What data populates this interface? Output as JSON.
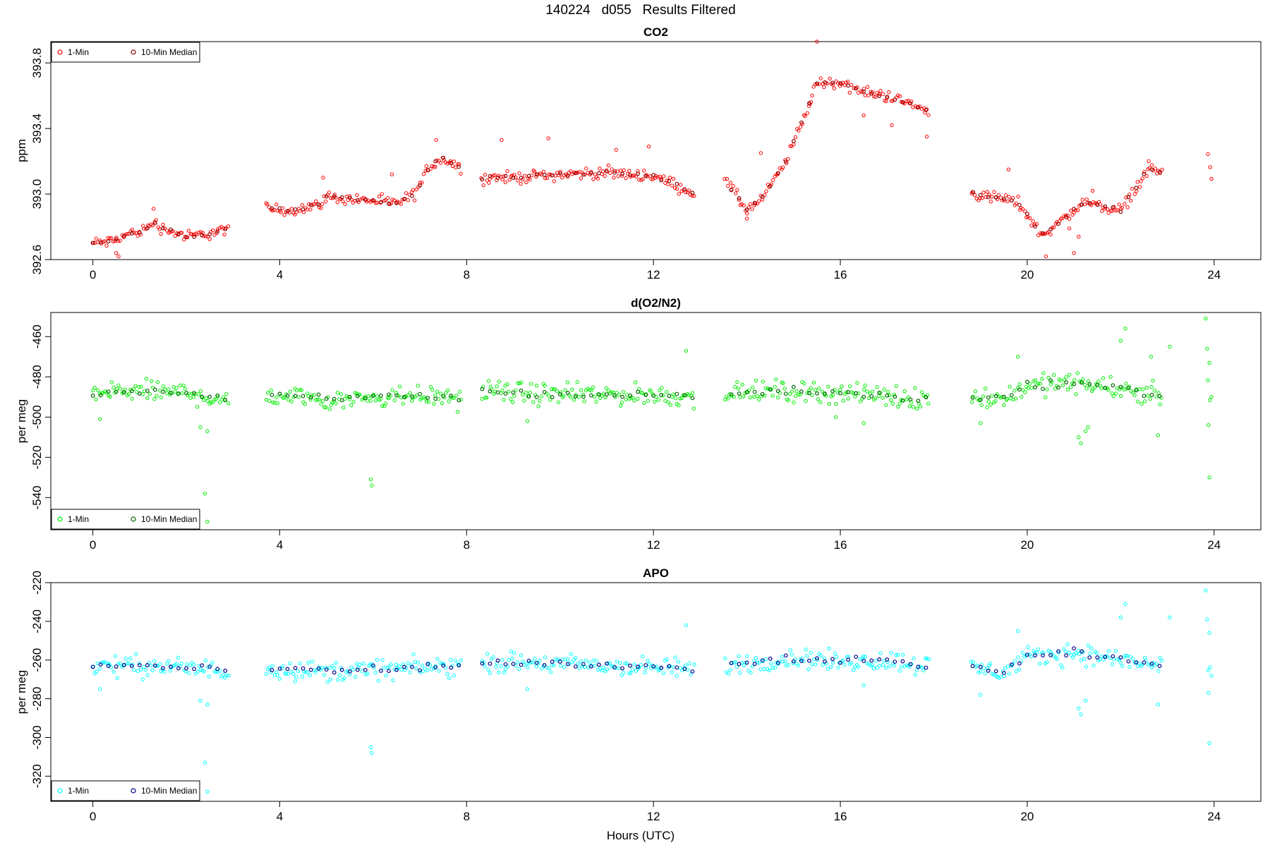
{
  "figure": {
    "title": "140224   d055   Results Filtered",
    "xlabel": "Hours (UTC)"
  },
  "chart_data": [
    {
      "type": "scatter",
      "title": "CO2",
      "ylabel": "ppm",
      "xlim": [
        -0.9,
        25
      ],
      "ylim": [
        392.6,
        393.93
      ],
      "xticks": [
        0,
        4,
        8,
        12,
        16,
        20,
        24
      ],
      "yticks": [
        392.6,
        393.0,
        393.4,
        393.8
      ],
      "ytick_labels": [
        "392.6",
        "393.0",
        "393.4",
        "393.8"
      ],
      "legend_position": "top-left",
      "series": [
        {
          "name": "1-Min",
          "color": "#ff0000",
          "marker": "open-circle"
        },
        {
          "name": "10-Min Median",
          "color": "#8b0000",
          "marker": "open-circle"
        }
      ],
      "x_gaps": [
        [
          2.9,
          3.7
        ],
        [
          7.9,
          8.3
        ],
        [
          12.9,
          13.5
        ],
        [
          17.9,
          18.8
        ],
        [
          22.9,
          23.85
        ]
      ],
      "trend": [
        [
          0.0,
          392.7
        ],
        [
          0.4,
          392.71
        ],
        [
          0.8,
          392.76
        ],
        [
          1.1,
          392.78
        ],
        [
          1.3,
          392.83
        ],
        [
          1.5,
          392.79
        ],
        [
          2.0,
          392.74
        ],
        [
          2.5,
          392.76
        ],
        [
          2.9,
          392.79
        ],
        [
          3.7,
          392.91
        ],
        [
          4.2,
          392.9
        ],
        [
          4.8,
          392.93
        ],
        [
          5.0,
          392.98
        ],
        [
          6.0,
          392.96
        ],
        [
          6.5,
          392.94
        ],
        [
          6.9,
          393.0
        ],
        [
          7.2,
          393.17
        ],
        [
          7.5,
          393.22
        ],
        [
          7.9,
          393.15
        ],
        [
          8.3,
          393.1
        ],
        [
          9.0,
          393.1
        ],
        [
          10.0,
          393.12
        ],
        [
          11.0,
          393.13
        ],
        [
          12.0,
          393.11
        ],
        [
          12.5,
          393.05
        ],
        [
          12.9,
          393.0
        ],
        [
          13.5,
          393.1
        ],
        [
          14.0,
          392.9
        ],
        [
          14.3,
          392.96
        ],
        [
          14.8,
          393.18
        ],
        [
          15.2,
          393.45
        ],
        [
          15.5,
          393.68
        ],
        [
          16.0,
          393.68
        ],
        [
          16.5,
          393.62
        ],
        [
          17.0,
          393.6
        ],
        [
          17.5,
          393.55
        ],
        [
          17.9,
          393.5
        ],
        [
          18.8,
          393.0
        ],
        [
          19.3,
          392.98
        ],
        [
          19.8,
          392.95
        ],
        [
          20.3,
          392.75
        ],
        [
          20.8,
          392.85
        ],
        [
          21.2,
          392.95
        ],
        [
          22.0,
          392.9
        ],
        [
          22.6,
          393.15
        ],
        [
          22.9,
          393.14
        ],
        [
          23.85,
          393.25
        ],
        [
          23.95,
          393.1
        ]
      ],
      "noise": 0.03,
      "outliers": [
        [
          0.5,
          392.64
        ],
        [
          0.55,
          392.62
        ],
        [
          1.3,
          392.91
        ],
        [
          4.93,
          393.1
        ],
        [
          6.4,
          393.12
        ],
        [
          7.35,
          393.33
        ],
        [
          8.75,
          393.33
        ],
        [
          9.75,
          393.34
        ],
        [
          11.2,
          393.27
        ],
        [
          11.9,
          393.29
        ],
        [
          15.5,
          393.93
        ],
        [
          15.35,
          393.55
        ],
        [
          14.0,
          392.85
        ],
        [
          14.3,
          393.25
        ],
        [
          16.5,
          393.48
        ],
        [
          17.1,
          393.42
        ],
        [
          17.85,
          393.35
        ],
        [
          19.6,
          393.15
        ],
        [
          20.4,
          392.62
        ],
        [
          21.0,
          392.64
        ],
        [
          21.1,
          392.74
        ],
        [
          21.4,
          393.02
        ],
        [
          20.9,
          392.79
        ],
        [
          22.6,
          393.2
        ]
      ]
    },
    {
      "type": "scatter",
      "title": "d(O2/N2)",
      "ylabel": "per meg",
      "xlim": [
        -0.9,
        25
      ],
      "ylim": [
        -556,
        -448
      ],
      "xticks": [
        0,
        4,
        8,
        12,
        16,
        20,
        24
      ],
      "yticks": [
        -460,
        -480,
        -500,
        -520,
        -540
      ],
      "ytick_labels": [
        "-460",
        "-480",
        "-500",
        "-520",
        "-540"
      ],
      "legend_position": "bottom-left",
      "series": [
        {
          "name": "1-Min",
          "color": "#00ee00",
          "marker": "open-circle"
        },
        {
          "name": "10-Min Median",
          "color": "#006400",
          "marker": "open-circle"
        }
      ],
      "x_gaps": [
        [
          2.9,
          3.7
        ],
        [
          7.9,
          8.3
        ],
        [
          12.9,
          13.5
        ],
        [
          17.9,
          18.8
        ],
        [
          22.9,
          23.85
        ]
      ],
      "trend": [
        [
          0.0,
          -488
        ],
        [
          1.0,
          -487
        ],
        [
          2.0,
          -488
        ],
        [
          2.9,
          -492
        ],
        [
          3.7,
          -489
        ],
        [
          5.0,
          -491
        ],
        [
          6.0,
          -490
        ],
        [
          7.0,
          -489
        ],
        [
          7.9,
          -491
        ],
        [
          8.3,
          -487
        ],
        [
          10.0,
          -489
        ],
        [
          12.0,
          -489
        ],
        [
          12.9,
          -490
        ],
        [
          13.5,
          -488
        ],
        [
          15.0,
          -487
        ],
        [
          16.0,
          -488
        ],
        [
          17.9,
          -491
        ],
        [
          18.8,
          -490
        ],
        [
          19.5,
          -491
        ],
        [
          20.0,
          -484
        ],
        [
          21.0,
          -483
        ],
        [
          22.0,
          -486
        ],
        [
          22.9,
          -489
        ],
        [
          23.85,
          -487
        ],
        [
          23.95,
          -490
        ]
      ],
      "noise": 4.5,
      "outliers": [
        [
          0.15,
          -501
        ],
        [
          2.3,
          -505
        ],
        [
          2.45,
          -507
        ],
        [
          2.4,
          -538
        ],
        [
          2.45,
          -552
        ],
        [
          5.95,
          -531
        ],
        [
          5.97,
          -534
        ],
        [
          9.3,
          -502
        ],
        [
          12.7,
          -467
        ],
        [
          15.9,
          -500
        ],
        [
          16.5,
          -503
        ],
        [
          19.0,
          -503
        ],
        [
          19.8,
          -470
        ],
        [
          21.1,
          -510
        ],
        [
          21.15,
          -513
        ],
        [
          21.25,
          -507
        ],
        [
          21.3,
          -505
        ],
        [
          22.1,
          -456
        ],
        [
          22.0,
          -462
        ],
        [
          22.65,
          -470
        ],
        [
          22.8,
          -509
        ],
        [
          23.05,
          -465
        ],
        [
          23.82,
          -451
        ],
        [
          23.85,
          -466
        ],
        [
          23.9,
          -473
        ],
        [
          23.88,
          -504
        ],
        [
          23.9,
          -530
        ]
      ]
    },
    {
      "type": "scatter",
      "title": "APO",
      "ylabel": "per meg",
      "xlim": [
        -0.9,
        25
      ],
      "ylim": [
        -333,
        -220
      ],
      "xticks": [
        0,
        4,
        8,
        12,
        16,
        20,
        24
      ],
      "yticks": [
        -220,
        -240,
        -260,
        -280,
        -300,
        -320
      ],
      "ytick_labels": [
        "-220",
        "-240",
        "-260",
        "-280",
        "-300",
        "-320"
      ],
      "legend_position": "bottom-left",
      "series": [
        {
          "name": "1-Min",
          "color": "#00ffff",
          "marker": "open-circle"
        },
        {
          "name": "10-Min Median",
          "color": "#00008b",
          "marker": "open-circle"
        }
      ],
      "x_gaps": [
        [
          2.9,
          3.7
        ],
        [
          7.9,
          8.3
        ],
        [
          12.9,
          13.5
        ],
        [
          17.9,
          18.8
        ],
        [
          22.9,
          23.85
        ]
      ],
      "trend": [
        [
          0.0,
          -263
        ],
        [
          1.0,
          -263
        ],
        [
          2.0,
          -264
        ],
        [
          2.9,
          -266
        ],
        [
          3.7,
          -264
        ],
        [
          5.0,
          -266
        ],
        [
          6.0,
          -265
        ],
        [
          7.0,
          -264
        ],
        [
          7.9,
          -263
        ],
        [
          8.3,
          -261
        ],
        [
          10.0,
          -262
        ],
        [
          12.0,
          -264
        ],
        [
          12.9,
          -265
        ],
        [
          13.5,
          -263
        ],
        [
          15.0,
          -259
        ],
        [
          16.0,
          -261
        ],
        [
          17.0,
          -260
        ],
        [
          17.9,
          -263
        ],
        [
          18.8,
          -264
        ],
        [
          19.5,
          -266
        ],
        [
          20.0,
          -259
        ],
        [
          21.0,
          -256
        ],
        [
          22.0,
          -260
        ],
        [
          22.9,
          -263
        ],
        [
          23.85,
          -262
        ],
        [
          23.95,
          -265
        ]
      ],
      "noise": 4.5,
      "outliers": [
        [
          0.15,
          -275
        ],
        [
          2.3,
          -281
        ],
        [
          2.45,
          -283
        ],
        [
          2.4,
          -313
        ],
        [
          2.45,
          -328
        ],
        [
          5.95,
          -305
        ],
        [
          5.97,
          -308
        ],
        [
          9.3,
          -275
        ],
        [
          12.7,
          -242
        ],
        [
          16.5,
          -273
        ],
        [
          19.0,
          -278
        ],
        [
          19.8,
          -245
        ],
        [
          21.1,
          -285
        ],
        [
          21.15,
          -288
        ],
        [
          21.25,
          -281
        ],
        [
          22.1,
          -231
        ],
        [
          22.0,
          -238
        ],
        [
          22.8,
          -283
        ],
        [
          23.05,
          -238
        ],
        [
          23.82,
          -224
        ],
        [
          23.85,
          -239
        ],
        [
          23.9,
          -246
        ],
        [
          23.88,
          -277
        ],
        [
          23.9,
          -303
        ]
      ]
    }
  ]
}
